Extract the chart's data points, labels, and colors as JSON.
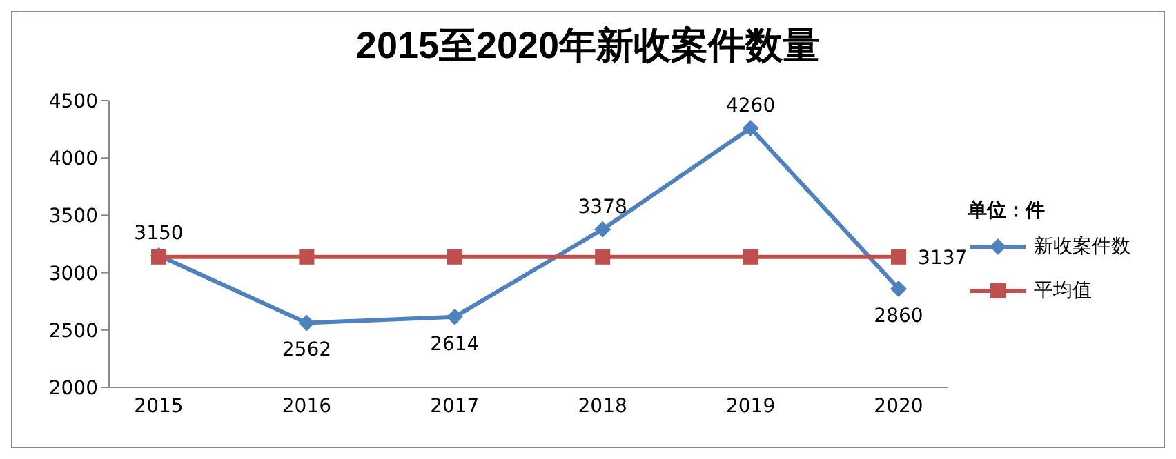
{
  "chart_data": {
    "type": "line",
    "title": "2015至2020年新收案件数量",
    "categories": [
      "2015",
      "2016",
      "2017",
      "2018",
      "2019",
      "2020"
    ],
    "series": [
      {
        "name": "新收案件数",
        "color": "#4f81bd",
        "marker": "diamond",
        "values": [
          3150,
          2562,
          2614,
          3378,
          4260,
          2860
        ],
        "value_labels": [
          "3150",
          "2562",
          "2614",
          "3378",
          "4260",
          "2860"
        ]
      },
      {
        "name": "平均值",
        "color": "#c0504d",
        "marker": "square",
        "values": [
          3137,
          3137,
          3137,
          3137,
          3137,
          3137
        ],
        "value_labels": [
          null,
          null,
          null,
          null,
          null,
          "3137"
        ]
      }
    ],
    "ylim": [
      2000,
      4500
    ],
    "yticks": [
      2000,
      2500,
      3000,
      3500,
      4000,
      4500
    ],
    "grid": false,
    "legend": "right",
    "legend_title": "单位：件"
  }
}
